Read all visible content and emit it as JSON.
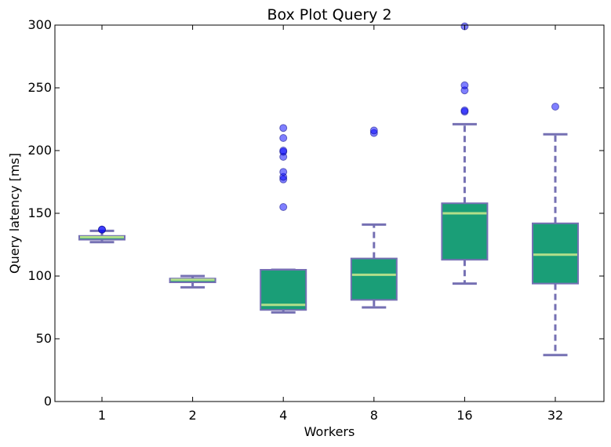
{
  "chart_data": {
    "type": "box",
    "title": "Box Plot Query 2",
    "xlabel": "Workers",
    "ylabel": "Query latency [ms]",
    "ylim": [
      0,
      300
    ],
    "yticks": [
      0,
      50,
      100,
      150,
      200,
      250,
      300
    ],
    "categories": [
      "1",
      "2",
      "4",
      "8",
      "16",
      "32"
    ],
    "grid": false,
    "colors": {
      "box_fill": "#1a9e77",
      "box_edge": "#7570b3",
      "median": "#b2df8a",
      "whisker": "#7570b3",
      "outlier": "#0000ff"
    },
    "boxes": [
      {
        "category": "1",
        "whisker_low": 127,
        "q1": 129,
        "median": 131,
        "q3": 132,
        "whisker_high": 136,
        "outliers": [
          137,
          137
        ]
      },
      {
        "category": "2",
        "whisker_low": 91,
        "q1": 95,
        "median": 97,
        "q3": 98,
        "whisker_high": 100,
        "outliers": []
      },
      {
        "category": "4",
        "whisker_low": 71,
        "q1": 73,
        "median": 77,
        "q3": 105,
        "whisker_high": 105,
        "outliers": [
          155,
          177,
          179,
          183,
          195,
          199,
          200,
          210,
          218
        ]
      },
      {
        "category": "8",
        "whisker_low": 75,
        "q1": 81,
        "median": 101,
        "q3": 114,
        "whisker_high": 141,
        "outliers": [
          214,
          216
        ]
      },
      {
        "category": "16",
        "whisker_low": 94,
        "q1": 113,
        "median": 150,
        "q3": 158,
        "whisker_high": 221,
        "outliers": [
          231,
          232,
          248,
          252,
          299
        ]
      },
      {
        "category": "32",
        "whisker_low": 37,
        "q1": 94,
        "median": 117,
        "q3": 142,
        "whisker_high": 213,
        "outliers": [
          235
        ]
      }
    ]
  }
}
